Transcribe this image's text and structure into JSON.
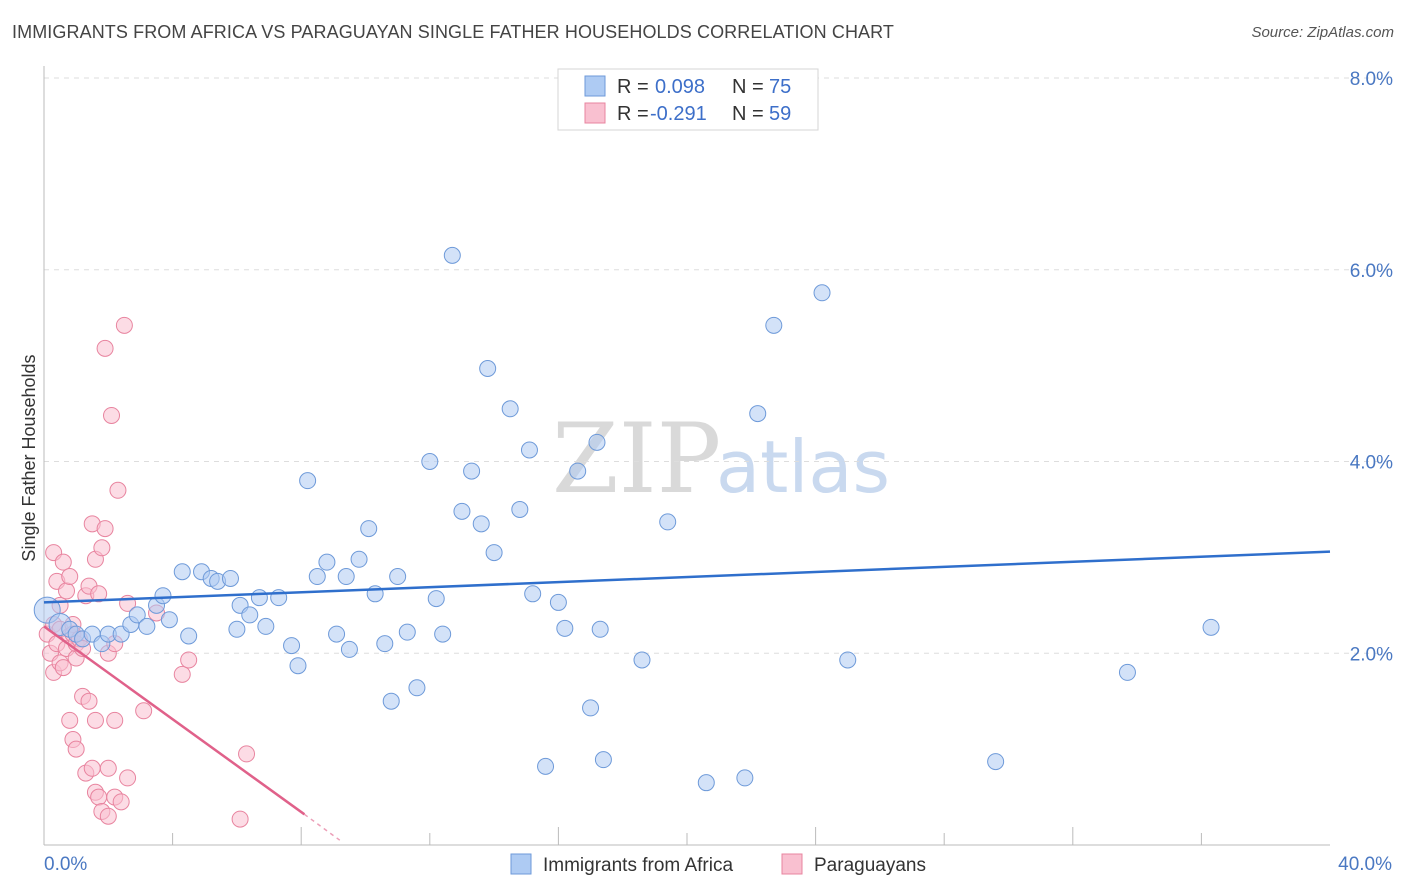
{
  "header": {
    "title": "IMMIGRANTS FROM AFRICA VS PARAGUAYAN SINGLE FATHER HOUSEHOLDS CORRELATION CHART",
    "source": "Source: ZipAtlas.com"
  },
  "watermark": {
    "zip": "ZIP",
    "atlas": "atlas"
  },
  "legend": {
    "rows": [
      {
        "r_label": "R =",
        "r_value": "0.098",
        "n_label": "N =",
        "n_value": "75"
      },
      {
        "r_label": "R =",
        "r_value": "-0.291",
        "n_label": "N =",
        "n_value": "59"
      }
    ]
  },
  "bottom_legend": {
    "items": [
      {
        "label": "Immigrants from Africa"
      },
      {
        "label": "Paraguayans"
      }
    ]
  },
  "colors": {
    "blue_fill": "#aecbf3",
    "blue_stroke": "#6e9ad9",
    "blue_line": "#2f6fcc",
    "pink_fill": "#f9c0d0",
    "pink_stroke": "#e8849f",
    "pink_line": "#e0618a",
    "grid": "#dddddd",
    "tick_text": "#4a78c2"
  },
  "chart_data": {
    "type": "scatter",
    "title": "IMMIGRANTS FROM AFRICA VS PARAGUAYAN SINGLE FATHER HOUSEHOLDS CORRELATION CHART",
    "xlabel": "",
    "ylabel": "Single Father Households",
    "xlim": [
      0,
      40
    ],
    "ylim": [
      0,
      8
    ],
    "x_tick_labels": [
      "0.0%",
      "40.0%"
    ],
    "y_ticks": [
      2,
      4,
      6,
      8
    ],
    "y_tick_labels": [
      "2.0%",
      "4.0%",
      "6.0%",
      "8.0%"
    ],
    "grid": true,
    "series": [
      {
        "name": "Immigrants from Africa",
        "r": 0.098,
        "n": 75,
        "trend": {
          "x": [
            0,
            40
          ],
          "y": [
            2.53,
            3.06
          ]
        },
        "points": [
          [
            0.1,
            2.45
          ],
          [
            0.5,
            2.3
          ],
          [
            0.8,
            2.25
          ],
          [
            1.0,
            2.2
          ],
          [
            1.2,
            2.15
          ],
          [
            1.5,
            2.2
          ],
          [
            1.8,
            2.1
          ],
          [
            2.0,
            2.2
          ],
          [
            2.4,
            2.2
          ],
          [
            2.7,
            2.3
          ],
          [
            2.9,
            2.4
          ],
          [
            3.2,
            2.28
          ],
          [
            3.5,
            2.5
          ],
          [
            3.7,
            2.6
          ],
          [
            3.9,
            2.35
          ],
          [
            4.3,
            2.85
          ],
          [
            4.5,
            2.18
          ],
          [
            4.9,
            2.85
          ],
          [
            5.2,
            2.78
          ],
          [
            5.4,
            2.75
          ],
          [
            5.8,
            2.78
          ],
          [
            6.0,
            2.25
          ],
          [
            6.1,
            2.5
          ],
          [
            6.4,
            2.4
          ],
          [
            6.7,
            2.58
          ],
          [
            6.9,
            2.28
          ],
          [
            7.3,
            2.58
          ],
          [
            7.7,
            2.08
          ],
          [
            7.9,
            1.87
          ],
          [
            8.2,
            3.8
          ],
          [
            8.5,
            2.8
          ],
          [
            8.8,
            2.95
          ],
          [
            9.1,
            2.2
          ],
          [
            9.4,
            2.8
          ],
          [
            9.5,
            2.04
          ],
          [
            9.8,
            2.98
          ],
          [
            10.1,
            3.3
          ],
          [
            10.3,
            2.62
          ],
          [
            10.6,
            2.1
          ],
          [
            10.8,
            1.5
          ],
          [
            11.0,
            2.8
          ],
          [
            11.3,
            2.22
          ],
          [
            11.6,
            1.64
          ],
          [
            12.0,
            4.0
          ],
          [
            12.2,
            2.57
          ],
          [
            12.4,
            2.2
          ],
          [
            12.7,
            6.15
          ],
          [
            13.0,
            3.48
          ],
          [
            13.3,
            3.9
          ],
          [
            13.6,
            3.35
          ],
          [
            13.8,
            4.97
          ],
          [
            14.0,
            3.05
          ],
          [
            14.5,
            4.55
          ],
          [
            14.8,
            3.5
          ],
          [
            15.1,
            4.12
          ],
          [
            15.2,
            2.62
          ],
          [
            15.6,
            0.82
          ],
          [
            16.0,
            2.53
          ],
          [
            16.2,
            2.26
          ],
          [
            16.6,
            3.9
          ],
          [
            17.0,
            1.43
          ],
          [
            17.2,
            4.2
          ],
          [
            17.3,
            2.25
          ],
          [
            17.4,
            0.89
          ],
          [
            18.6,
            1.93
          ],
          [
            19.4,
            3.37
          ],
          [
            20.6,
            0.65
          ],
          [
            21.8,
            0.7
          ],
          [
            22.2,
            4.5
          ],
          [
            22.7,
            5.42
          ],
          [
            24.2,
            5.76
          ],
          [
            25.0,
            1.93
          ],
          [
            29.6,
            0.87
          ],
          [
            33.7,
            1.8
          ],
          [
            36.3,
            2.27
          ]
        ]
      },
      {
        "name": "Paraguayans",
        "r": -0.291,
        "n": 59,
        "trend": {
          "x": [
            0,
            8.1
          ],
          "y": [
            2.28,
            0.32
          ]
        },
        "trend_dashed": {
          "x": [
            8.1,
            9.2
          ],
          "y": [
            0.32,
            0.05
          ]
        },
        "points": [
          [
            0.1,
            2.2
          ],
          [
            0.2,
            2.0
          ],
          [
            0.3,
            1.8
          ],
          [
            0.3,
            2.3
          ],
          [
            0.4,
            2.1
          ],
          [
            0.5,
            1.9
          ],
          [
            0.5,
            2.25
          ],
          [
            0.6,
            1.85
          ],
          [
            0.7,
            2.05
          ],
          [
            0.8,
            2.18
          ],
          [
            0.9,
            2.3
          ],
          [
            0.3,
            3.05
          ],
          [
            0.4,
            2.75
          ],
          [
            0.5,
            2.5
          ],
          [
            0.6,
            2.95
          ],
          [
            0.7,
            2.65
          ],
          [
            0.8,
            2.8
          ],
          [
            0.9,
            2.2
          ],
          [
            1.0,
            1.95
          ],
          [
            1.0,
            2.1
          ],
          [
            1.1,
            2.15
          ],
          [
            1.2,
            2.05
          ],
          [
            1.3,
            2.6
          ],
          [
            1.4,
            2.7
          ],
          [
            1.5,
            3.35
          ],
          [
            1.6,
            2.98
          ],
          [
            1.7,
            2.62
          ],
          [
            1.8,
            3.1
          ],
          [
            1.9,
            3.3
          ],
          [
            2.0,
            2.0
          ],
          [
            2.2,
            2.1
          ],
          [
            0.8,
            1.3
          ],
          [
            0.9,
            1.1
          ],
          [
            1.0,
            1.0
          ],
          [
            1.2,
            1.55
          ],
          [
            1.4,
            1.5
          ],
          [
            1.6,
            1.3
          ],
          [
            1.3,
            0.75
          ],
          [
            1.5,
            0.8
          ],
          [
            1.6,
            0.55
          ],
          [
            1.7,
            0.5
          ],
          [
            1.8,
            0.35
          ],
          [
            2.0,
            0.3
          ],
          [
            2.2,
            0.5
          ],
          [
            2.4,
            0.45
          ],
          [
            2.6,
            0.7
          ],
          [
            2.0,
            0.8
          ],
          [
            2.2,
            1.3
          ],
          [
            1.9,
            5.18
          ],
          [
            2.5,
            5.42
          ],
          [
            2.1,
            4.48
          ],
          [
            2.3,
            3.7
          ],
          [
            2.6,
            2.52
          ],
          [
            3.1,
            1.4
          ],
          [
            3.5,
            2.42
          ],
          [
            4.3,
            1.78
          ],
          [
            4.5,
            1.93
          ],
          [
            6.1,
            0.27
          ],
          [
            6.3,
            0.95
          ]
        ]
      }
    ]
  }
}
